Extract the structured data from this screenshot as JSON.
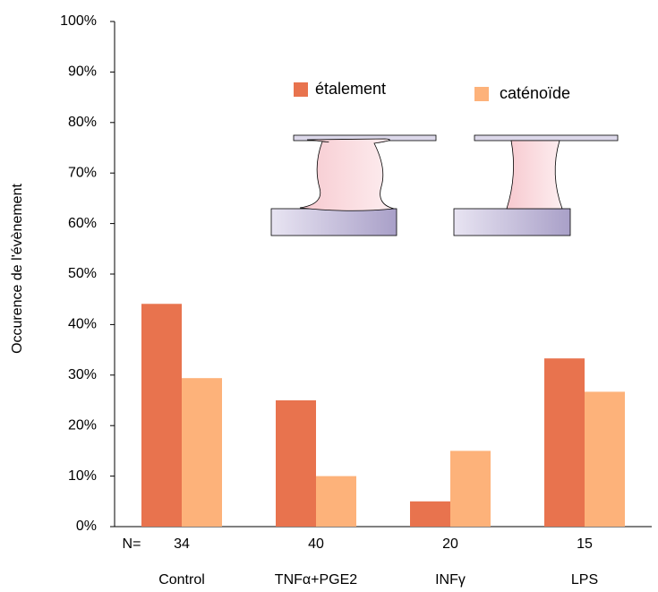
{
  "chart_data": {
    "type": "bar",
    "y_label": "Occurence de l'évènement",
    "categories": [
      "Control",
      "TNFα+PGE2",
      "INFγ",
      "LPS"
    ],
    "n_label": "N=",
    "n_values": [
      34,
      40,
      20,
      15
    ],
    "series": [
      {
        "name": "étalement",
        "color": "#e8734e",
        "values": [
          44.1,
          25,
          5,
          33.3
        ]
      },
      {
        "name": "caténoïde",
        "color": "#fdb27a",
        "values": [
          29.4,
          10,
          15,
          26.7
        ]
      }
    ],
    "ylim": [
      0,
      100
    ],
    "yticks": [
      {
        "value": 0,
        "label": "0%"
      },
      {
        "value": 10,
        "label": "10%"
      },
      {
        "value": 20,
        "label": "20%"
      },
      {
        "value": 30,
        "label": "30%"
      },
      {
        "value": 40,
        "label": "40%"
      },
      {
        "value": 50,
        "label": "50%"
      },
      {
        "value": 60,
        "label": "60%"
      },
      {
        "value": 70,
        "label": "70%"
      },
      {
        "value": 80,
        "label": "80%"
      },
      {
        "value": 90,
        "label": "90%"
      },
      {
        "value": 100,
        "label": "100%"
      }
    ],
    "grid": false
  }
}
